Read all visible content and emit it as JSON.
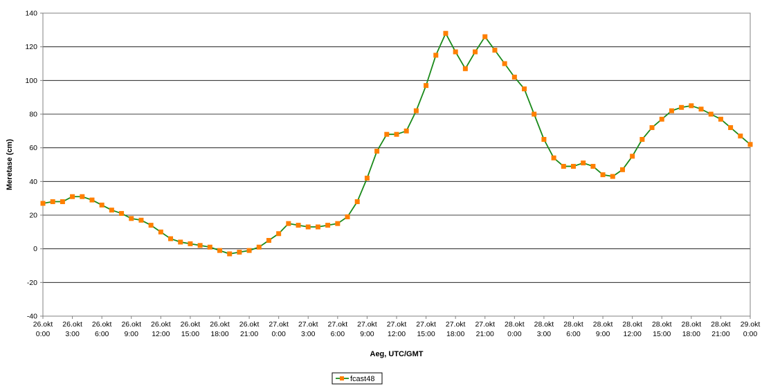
{
  "chart_data": {
    "type": "line",
    "title": "",
    "xlabel": "Aeg, UTC/GMT",
    "ylabel": "Meretase (cm)",
    "ylim": [
      -40,
      140
    ],
    "yticks": [
      -40,
      -20,
      0,
      20,
      40,
      60,
      80,
      100,
      120,
      140
    ],
    "grid": "horizontal",
    "legend_position": "bottom-center",
    "x_tick_labels": [
      [
        "26.okt",
        "0:00"
      ],
      [
        "26.okt",
        "3:00"
      ],
      [
        "26.okt",
        "6:00"
      ],
      [
        "26.okt",
        "9:00"
      ],
      [
        "26.okt",
        "12:00"
      ],
      [
        "26.okt",
        "15:00"
      ],
      [
        "26.okt",
        "18:00"
      ],
      [
        "26.okt",
        "21:00"
      ],
      [
        "27.okt",
        "0:00"
      ],
      [
        "27.okt",
        "3:00"
      ],
      [
        "27.okt",
        "6:00"
      ],
      [
        "27.okt",
        "9:00"
      ],
      [
        "27.okt",
        "12:00"
      ],
      [
        "27.okt",
        "15:00"
      ],
      [
        "27.okt",
        "18:00"
      ],
      [
        "27.okt",
        "21:00"
      ],
      [
        "28.okt",
        "0:00"
      ],
      [
        "28.okt",
        "3:00"
      ],
      [
        "28.okt",
        "6:00"
      ],
      [
        "28.okt",
        "9:00"
      ],
      [
        "28.okt",
        "12:00"
      ],
      [
        "28.okt",
        "15:00"
      ],
      [
        "28.okt",
        "18:00"
      ],
      [
        "28.okt",
        "21:00"
      ],
      [
        "29.okt",
        "0:00"
      ]
    ],
    "series": [
      {
        "name": "fcast48",
        "line_color": "#1a8a1a",
        "marker_color": "#ff7f00",
        "marker": "square",
        "values": [
          27,
          28,
          28,
          31,
          31,
          29,
          26,
          23,
          21,
          18,
          17,
          14,
          10,
          6,
          4,
          3,
          2,
          1,
          -1,
          -3,
          -2,
          -1,
          1,
          5,
          9,
          15,
          14,
          13,
          13,
          14,
          15,
          19,
          28,
          42,
          58,
          68,
          68,
          70,
          82,
          97,
          115,
          128,
          117,
          107,
          117,
          126,
          118,
          110,
          102,
          95,
          80,
          65,
          54,
          49,
          49,
          51,
          49,
          44,
          43,
          47,
          55,
          65,
          72,
          77,
          82,
          84,
          85,
          83,
          80,
          77,
          72,
          67,
          62
        ]
      }
    ]
  }
}
